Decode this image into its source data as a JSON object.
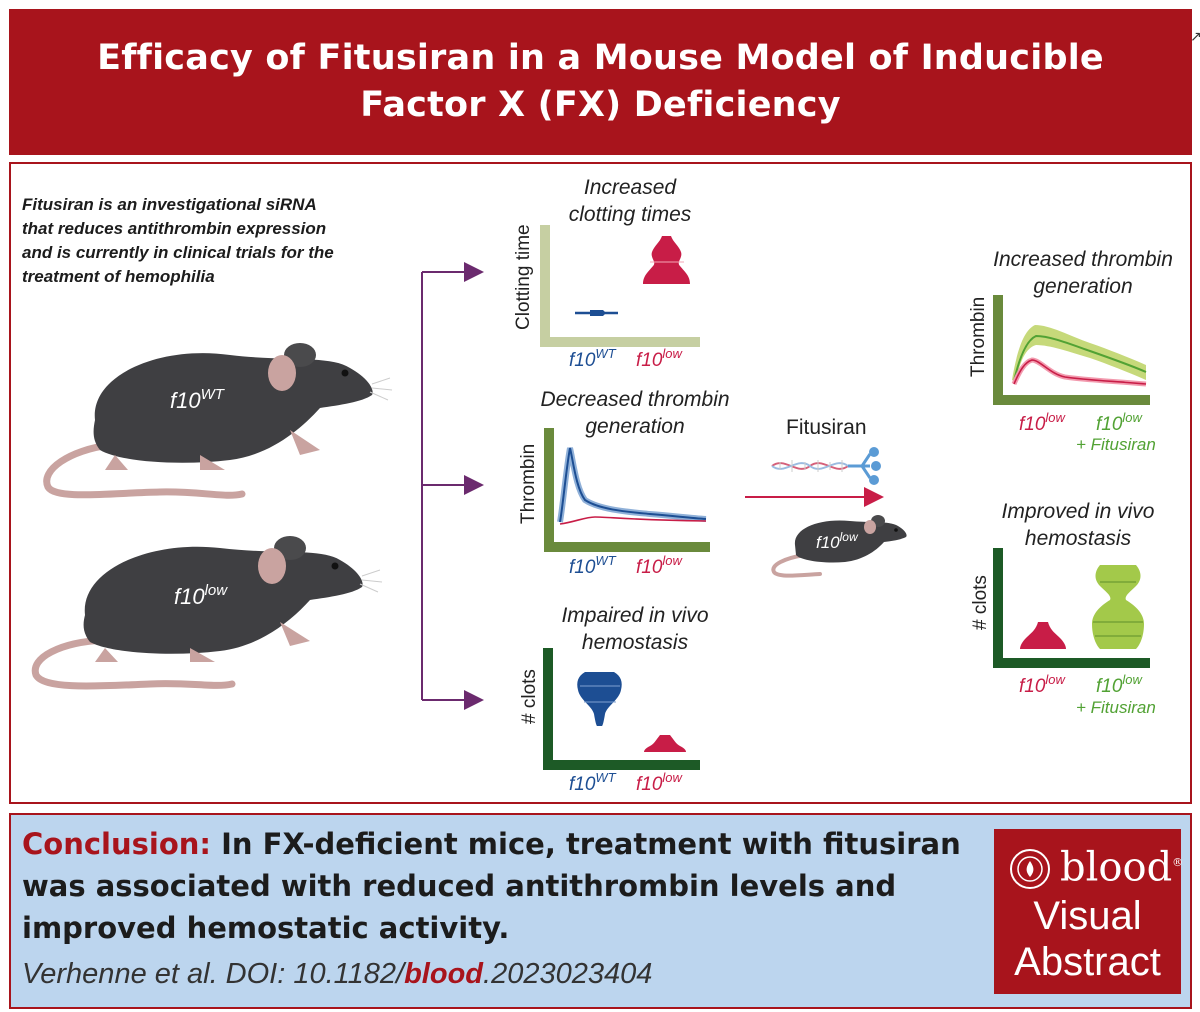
{
  "title": {
    "line1": "Efficacy of Fitusiran in a Mouse Model of Inducible",
    "line2": "Factor X (FX) Deficiency"
  },
  "corner_mark": "↗",
  "intro": {
    "line1": "Fitusiran is an investigational siRNA",
    "line2": "that reduces antithrombin expression",
    "line3": "and is currently in clinical trials for the",
    "line4": "treatment of hemophilia"
  },
  "genotype": {
    "base": "f10",
    "wt": "WT",
    "low": "low"
  },
  "treatment": {
    "name": "Fitusiran",
    "plus_label": "+ Fitusiran"
  },
  "charts": {
    "clotting": {
      "title_line1": "Increased",
      "title_line2": "clotting times",
      "ylabel": "Clotting time"
    },
    "thrombin_decreased": {
      "title_line1": "Decreased thrombin",
      "title_line2": "generation",
      "ylabel": "Thrombin"
    },
    "hemostasis_impaired": {
      "title_line1": "Impaired in vivo",
      "title_line2": "hemostasis",
      "ylabel": "# clots"
    },
    "thrombin_increased": {
      "title_line1": "Increased thrombin",
      "title_line2": "generation",
      "ylabel": "Thrombin"
    },
    "hemostasis_improved": {
      "title_line1": "Improved in vivo",
      "title_line2": "hemostasis",
      "ylabel": "# clots"
    }
  },
  "conclusion": {
    "label": "Conclusion:",
    "line1": "In FX-deficient mice, treatment with fitusiran",
    "line2": "was associated with reduced antithrombin levels and",
    "line3": "improved hemostatic activity."
  },
  "citation": {
    "prefix": "Verhenne et al. DOI: 10.1182/",
    "journal": "blood",
    "suffix": ".2023023404"
  },
  "logo": {
    "brand": "blood",
    "reg": "®",
    "line1": "Visual",
    "line2": "Abstract"
  },
  "colors": {
    "brand_red": "#a8141c",
    "wt_blue": "#1d4e93",
    "low_red": "#c81d47",
    "fitusiran_green": "#52a234",
    "arrow_purple": "#6b2a6e",
    "axis_dark_green": "#1d5a26",
    "axis_mid_green": "#6a8a3c",
    "axis_light_green": "#c6cfa2",
    "conclusion_bg": "#bcd5ee"
  }
}
